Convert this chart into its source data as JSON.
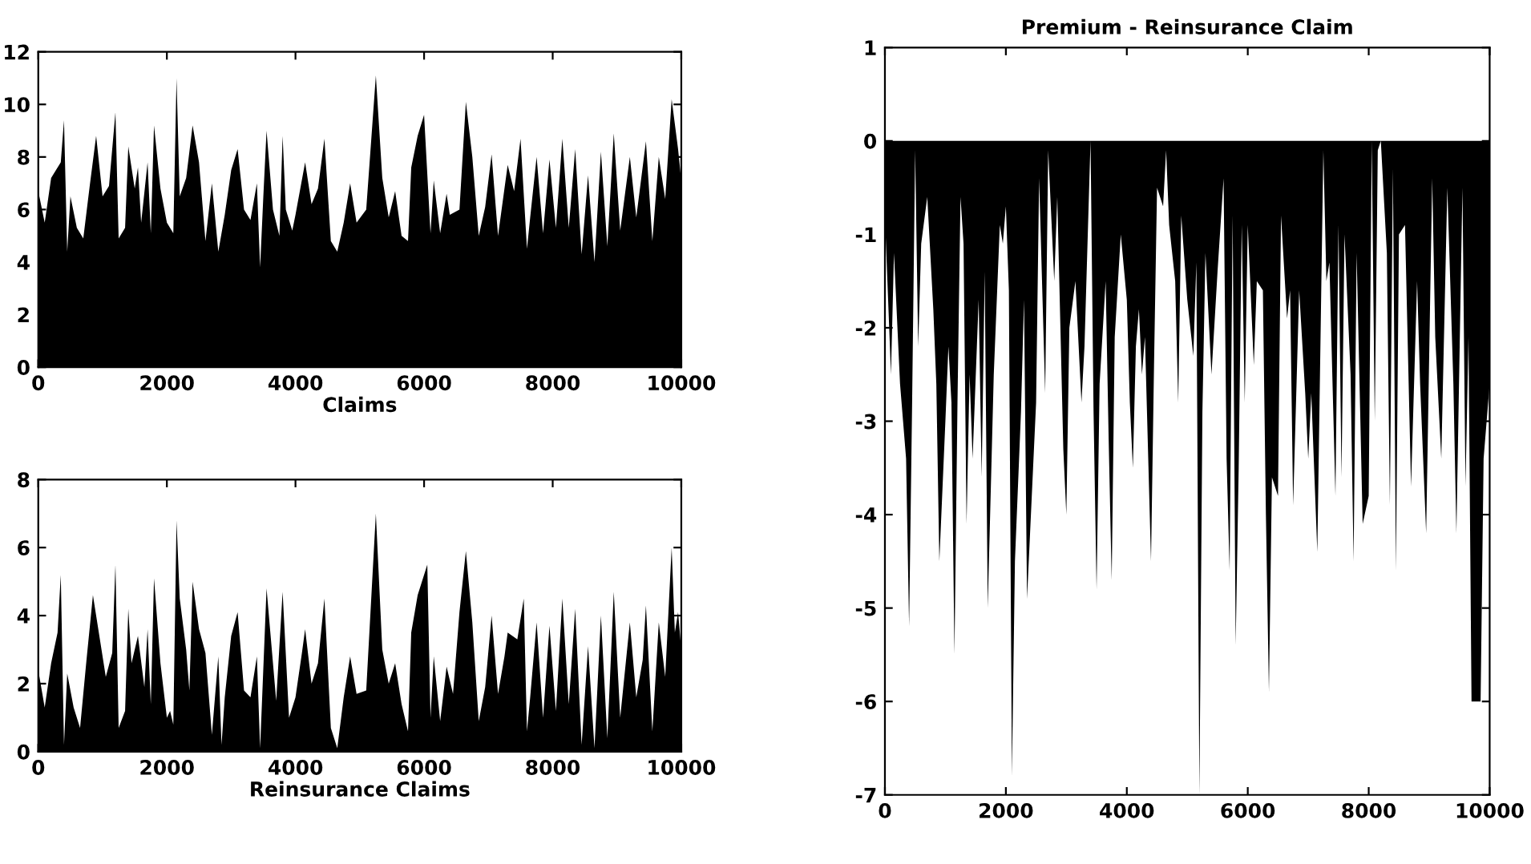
{
  "chart_data": [
    {
      "type": "area",
      "xlabel": "Claims",
      "color": "#000000",
      "xlim": [
        0,
        10000
      ],
      "ylim": [
        0,
        12
      ],
      "xticks": [
        0,
        2000,
        4000,
        6000,
        8000,
        10000
      ],
      "yticks": [
        0,
        2,
        4,
        6,
        8,
        10,
        12
      ],
      "x": [
        0,
        100,
        200,
        350,
        400,
        450,
        500,
        600,
        700,
        800,
        900,
        1000,
        1100,
        1200,
        1250,
        1350,
        1400,
        1500,
        1550,
        1600,
        1700,
        1750,
        1800,
        1900,
        2000,
        2100,
        2150,
        2200,
        2300,
        2400,
        2500,
        2600,
        2700,
        2800,
        2900,
        3000,
        3100,
        3200,
        3300,
        3400,
        3450,
        3500,
        3550,
        3650,
        3750,
        3800,
        3850,
        3950,
        4000,
        4150,
        4250,
        4350,
        4450,
        4550,
        4650,
        4750,
        4850,
        4950,
        5100,
        5250,
        5350,
        5450,
        5550,
        5650,
        5750,
        5800,
        5900,
        6000,
        6100,
        6150,
        6250,
        6350,
        6400,
        6550,
        6650,
        6750,
        6850,
        6950,
        7050,
        7150,
        7250,
        7300,
        7400,
        7500,
        7600,
        7650,
        7750,
        7850,
        7950,
        8050,
        8150,
        8250,
        8350,
        8450,
        8550,
        8650,
        8750,
        8850,
        8950,
        9050,
        9200,
        9300,
        9450,
        9550,
        9650,
        9750,
        9850,
        9950,
        10000
      ],
      "values": [
        6.7,
        5.5,
        7.2,
        7.8,
        9.4,
        4.4,
        6.5,
        5.3,
        4.9,
        6.9,
        8.8,
        6.5,
        6.9,
        9.7,
        4.9,
        5.3,
        8.4,
        6.8,
        7.6,
        5.5,
        7.8,
        5.1,
        9.2,
        6.8,
        5.5,
        5.1,
        11.0,
        6.5,
        7.2,
        9.2,
        7.8,
        4.8,
        7.0,
        4.4,
        5.8,
        7.5,
        8.3,
        6.0,
        5.6,
        7.0,
        3.8,
        6.5,
        9.0,
        6.0,
        5.0,
        8.8,
        6.0,
        5.2,
        5.8,
        7.8,
        6.2,
        6.8,
        8.7,
        4.8,
        4.4,
        5.5,
        7.0,
        5.5,
        6.0,
        11.1,
        7.2,
        5.7,
        6.7,
        5.0,
        4.8,
        7.6,
        8.8,
        9.6,
        5.1,
        7.1,
        5.1,
        6.6,
        5.8,
        6.0,
        10.1,
        8.0,
        5.0,
        6.1,
        8.1,
        5.0,
        6.8,
        7.7,
        6.7,
        8.7,
        4.5,
        5.7,
        8.0,
        5.1,
        7.9,
        5.3,
        8.7,
        5.3,
        8.3,
        4.3,
        7.3,
        4.0,
        8.2,
        4.6,
        8.9,
        5.2,
        8.0,
        5.7,
        8.6,
        4.8,
        8.0,
        6.4,
        10.2,
        8.3,
        7.1
      ]
    },
    {
      "type": "area",
      "xlabel": "Reinsurance Claims",
      "color": "#000000",
      "xlim": [
        0,
        10000
      ],
      "ylim": [
        0,
        8
      ],
      "xticks": [
        0,
        2000,
        4000,
        6000,
        8000,
        10000
      ],
      "yticks": [
        0,
        2,
        4,
        6,
        8
      ],
      "x": [
        0,
        100,
        200,
        300,
        350,
        400,
        450,
        550,
        650,
        750,
        850,
        950,
        1050,
        1150,
        1200,
        1250,
        1350,
        1400,
        1450,
        1550,
        1650,
        1700,
        1750,
        1800,
        1900,
        2000,
        2050,
        2100,
        2150,
        2200,
        2300,
        2350,
        2400,
        2500,
        2600,
        2700,
        2800,
        2850,
        2900,
        3000,
        3100,
        3200,
        3300,
        3400,
        3450,
        3550,
        3650,
        3700,
        3800,
        3900,
        4000,
        4100,
        4150,
        4250,
        4350,
        4450,
        4550,
        4650,
        4750,
        4850,
        4950,
        5100,
        5250,
        5350,
        5450,
        5550,
        5650,
        5750,
        5800,
        5900,
        6050,
        6100,
        6150,
        6250,
        6350,
        6450,
        6550,
        6650,
        6750,
        6850,
        6950,
        7050,
        7150,
        7250,
        7300,
        7450,
        7550,
        7600,
        7650,
        7750,
        7850,
        7950,
        8050,
        8150,
        8250,
        8350,
        8450,
        8550,
        8650,
        8750,
        8850,
        8950,
        9050,
        9200,
        9300,
        9400,
        9450,
        9550,
        9650,
        9750,
        9850,
        9900,
        9950,
        10000
      ],
      "values": [
        2.4,
        1.3,
        2.6,
        3.5,
        5.2,
        0.2,
        2.3,
        1.3,
        0.7,
        2.7,
        4.6,
        3.4,
        2.2,
        2.9,
        5.5,
        0.7,
        1.2,
        4.2,
        2.6,
        3.4,
        1.9,
        3.6,
        1.4,
        5.1,
        2.6,
        1.0,
        1.2,
        0.8,
        6.8,
        4.5,
        3.0,
        1.8,
        5.0,
        3.6,
        2.9,
        0.5,
        2.8,
        0.2,
        1.6,
        3.4,
        4.1,
        1.8,
        1.6,
        2.8,
        0.1,
        4.8,
        2.6,
        1.5,
        4.7,
        1.0,
        1.6,
        2.9,
        3.6,
        2.0,
        2.6,
        4.5,
        0.7,
        0.1,
        1.6,
        2.8,
        1.7,
        1.8,
        7.0,
        3.0,
        2.0,
        2.6,
        1.4,
        0.6,
        3.5,
        4.6,
        5.5,
        1.0,
        2.8,
        0.9,
        2.5,
        1.7,
        4.1,
        5.9,
        3.8,
        0.9,
        1.9,
        4.0,
        1.7,
        2.8,
        3.5,
        3.3,
        4.5,
        0.6,
        1.6,
        3.8,
        1.0,
        3.7,
        1.2,
        4.5,
        1.4,
        4.2,
        0.2,
        3.1,
        0.1,
        4.0,
        0.4,
        4.7,
        1.0,
        3.8,
        1.6,
        2.7,
        4.3,
        0.6,
        3.8,
        2.2,
        6.0,
        3.5,
        4.1,
        3.0
      ]
    },
    {
      "type": "area",
      "title": "Premium - Reinsurance Claim",
      "color": "#000000",
      "xlim": [
        0,
        10000
      ],
      "ylim": [
        -7,
        1
      ],
      "xticks": [
        0,
        2000,
        4000,
        6000,
        8000,
        10000
      ],
      "yticks": [
        -7,
        -6,
        -5,
        -4,
        -3,
        -2,
        -1,
        0,
        1
      ],
      "x": [
        0,
        100,
        150,
        250,
        300,
        350,
        400,
        450,
        500,
        550,
        600,
        700,
        800,
        850,
        900,
        1000,
        1050,
        1100,
        1150,
        1200,
        1250,
        1300,
        1350,
        1400,
        1450,
        1550,
        1600,
        1650,
        1700,
        1800,
        1900,
        1950,
        2000,
        2050,
        2100,
        2150,
        2250,
        2300,
        2350,
        2450,
        2500,
        2550,
        2650,
        2700,
        2800,
        2850,
        2950,
        3000,
        3050,
        3150,
        3250,
        3300,
        3400,
        3450,
        3500,
        3550,
        3650,
        3700,
        3750,
        3800,
        3900,
        4000,
        4050,
        4100,
        4150,
        4200,
        4250,
        4300,
        4400,
        4450,
        4500,
        4600,
        4650,
        4700,
        4800,
        4850,
        4900,
        5000,
        5100,
        5150,
        5200,
        5250,
        5300,
        5400,
        5500,
        5600,
        5650,
        5700,
        5750,
        5800,
        5850,
        5900,
        5950,
        6000,
        6100,
        6150,
        6250,
        6300,
        6350,
        6400,
        6500,
        6550,
        6650,
        6700,
        6750,
        6850,
        6950,
        7000,
        7050,
        7150,
        7250,
        7300,
        7350,
        7450,
        7500,
        7550,
        7600,
        7700,
        7750,
        7800,
        7900,
        8000,
        8050,
        8100,
        8150,
        8200,
        8300,
        8350,
        8400,
        8450,
        8500,
        8600,
        8700,
        8800,
        8850,
        8950,
        9050,
        9100,
        9200,
        9300,
        9400,
        9450,
        9550,
        9600,
        9650,
        9700,
        9850,
        9900,
        10000
      ],
      "values": [
        -0.8,
        -2.5,
        -1.2,
        -2.6,
        -3.0,
        -3.4,
        -5.2,
        -2.8,
        -0.1,
        -2.2,
        -1.1,
        -0.6,
        -1.8,
        -2.6,
        -4.5,
        -3.0,
        -2.2,
        -2.8,
        -5.5,
        -2.8,
        -0.6,
        -1.1,
        -4.1,
        -2.5,
        -3.4,
        -1.7,
        -3.6,
        -1.4,
        -5.0,
        -2.5,
        -0.9,
        -1.1,
        -0.7,
        -1.6,
        -6.8,
        -4.5,
        -2.9,
        -1.7,
        -4.9,
        -3.5,
        -2.8,
        -0.4,
        -2.7,
        -0.1,
        -1.5,
        -0.6,
        -3.3,
        -4.0,
        -2.0,
        -1.5,
        -2.8,
        -2.2,
        0,
        -2.9,
        -4.8,
        -2.6,
        -1.5,
        -3.2,
        -4.7,
        -2.1,
        -1.0,
        -1.7,
        -2.8,
        -3.5,
        -2.2,
        -1.8,
        -2.5,
        -2.1,
        -4.5,
        -2.4,
        -0.5,
        -0.7,
        -0.1,
        -0.9,
        -1.5,
        -2.8,
        -0.8,
        -1.7,
        -2.3,
        -1.3,
        -7.0,
        -2.9,
        -1.2,
        -2.5,
        -1.4,
        -0.4,
        -3.4,
        -4.6,
        -0.8,
        -5.4,
        -3.5,
        -0.9,
        -2.8,
        -0.9,
        -2.4,
        -1.5,
        -1.6,
        -4.0,
        -5.9,
        -3.6,
        -3.8,
        -0.8,
        -1.9,
        -1.6,
        -3.9,
        -1.6,
        -2.7,
        -3.4,
        -2.7,
        -4.4,
        -0.1,
        -1.5,
        -1.3,
        -3.8,
        -0.9,
        -3.6,
        -1.0,
        -2.5,
        -4.5,
        -1.2,
        -4.1,
        -3.8,
        0,
        -3.0,
        -0.1,
        0,
        -1.2,
        -3.9,
        -0.3,
        -4.6,
        -1.0,
        -0.9,
        -3.7,
        -1.5,
        -2.6,
        -4.2,
        -0.4,
        -2.1,
        -3.4,
        -0.5,
        -2.6,
        -4.2,
        -0.5,
        -3.7,
        -2.1,
        -6.0,
        -6.0,
        -3.4,
        -2.6
      ]
    }
  ]
}
